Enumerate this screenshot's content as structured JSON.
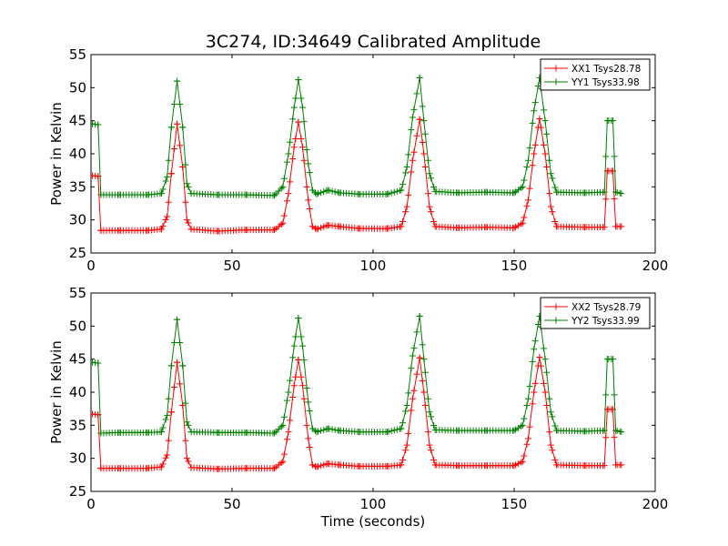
{
  "figure": {
    "title": "3C274, ID:34649 Calibrated Amplitude"
  },
  "chart_data": [
    {
      "type": "line",
      "ylabel": "Power in Kelvin",
      "xlabel": "",
      "xlim": [
        0,
        200
      ],
      "ylim": [
        25,
        55
      ],
      "xticks": [
        "0",
        "50",
        "100",
        "150",
        "200"
      ],
      "yticks": [
        "25",
        "30",
        "35",
        "40",
        "45",
        "50",
        "55"
      ],
      "grid": false,
      "legend_position": "top-right",
      "series": [
        {
          "name": "XX1 Tsys28.78",
          "color": "#ff0000",
          "marker": "plus",
          "values": [
            [
              0.5,
              36.7
            ],
            [
              2.5,
              36.6
            ],
            [
              3.5,
              28.4
            ],
            [
              10,
              28.4
            ],
            [
              20,
              28.4
            ],
            [
              25,
              28.6
            ],
            [
              27,
              30.5
            ],
            [
              28.5,
              37
            ],
            [
              30.5,
              44.5
            ],
            [
              32.5,
              38
            ],
            [
              34,
              30
            ],
            [
              35.5,
              28.6
            ],
            [
              45,
              28.3
            ],
            [
              55,
              28.5
            ],
            [
              65,
              28.5
            ],
            [
              68,
              29.5
            ],
            [
              70,
              34
            ],
            [
              72,
              41
            ],
            [
              73.5,
              44.8
            ],
            [
              75,
              41
            ],
            [
              77,
              33
            ],
            [
              78.5,
              29
            ],
            [
              80,
              28.6
            ],
            [
              84,
              29.2
            ],
            [
              88,
              29
            ],
            [
              95,
              28.7
            ],
            [
              105,
              28.7
            ],
            [
              110,
              29
            ],
            [
              112,
              32
            ],
            [
              114,
              39
            ],
            [
              116.5,
              45.2
            ],
            [
              118,
              40
            ],
            [
              120,
              32
            ],
            [
              122,
              29
            ],
            [
              130,
              28.8
            ],
            [
              140,
              28.9
            ],
            [
              150,
              28.8
            ],
            [
              153,
              29.5
            ],
            [
              155,
              33
            ],
            [
              157,
              40
            ],
            [
              159,
              45.3
            ],
            [
              161,
              40
            ],
            [
              163,
              32
            ],
            [
              165,
              29
            ],
            [
              175,
              28.9
            ],
            [
              182,
              28.9
            ],
            [
              183,
              37.4
            ],
            [
              185,
              37.4
            ],
            [
              186,
              29
            ],
            [
              188,
              29
            ]
          ]
        },
        {
          "name": "YY1 Tsys33.98",
          "color": "#008000",
          "marker": "plus",
          "values": [
            [
              0.5,
              44.5
            ],
            [
              2.5,
              44.4
            ],
            [
              3.5,
              33.8
            ],
            [
              10,
              33.8
            ],
            [
              20,
              33.8
            ],
            [
              25,
              34
            ],
            [
              27,
              36.5
            ],
            [
              28.5,
              44
            ],
            [
              30.5,
              51
            ],
            [
              32.5,
              44
            ],
            [
              34,
              35.5
            ],
            [
              35.5,
              34
            ],
            [
              45,
              33.8
            ],
            [
              55,
              33.8
            ],
            [
              65,
              33.7
            ],
            [
              68,
              35
            ],
            [
              70,
              40
            ],
            [
              72,
              47
            ],
            [
              73.5,
              51.2
            ],
            [
              75,
              47
            ],
            [
              77,
              38.5
            ],
            [
              78.5,
              34.5
            ],
            [
              80,
              33.9
            ],
            [
              84,
              34.5
            ],
            [
              88,
              34.1
            ],
            [
              95,
              33.9
            ],
            [
              105,
              33.9
            ],
            [
              110,
              34.5
            ],
            [
              112,
              38
            ],
            [
              114,
              45.5
            ],
            [
              116.5,
              51.5
            ],
            [
              118,
              45
            ],
            [
              120,
              37
            ],
            [
              122,
              34.3
            ],
            [
              130,
              34.1
            ],
            [
              140,
              34.2
            ],
            [
              150,
              34.1
            ],
            [
              153,
              35
            ],
            [
              155,
              39
            ],
            [
              157,
              46.5
            ],
            [
              159,
              51.5
            ],
            [
              161,
              45
            ],
            [
              163,
              37
            ],
            [
              165,
              34.2
            ],
            [
              175,
              34.1
            ],
            [
              182,
              34.2
            ],
            [
              183,
              45
            ],
            [
              185,
              45
            ],
            [
              186,
              34.2
            ],
            [
              188,
              34
            ]
          ]
        }
      ]
    },
    {
      "type": "line",
      "ylabel": "Power in Kelvin",
      "xlabel": "Time (seconds)",
      "xlim": [
        0,
        200
      ],
      "ylim": [
        25,
        55
      ],
      "xticks": [
        "0",
        "50",
        "100",
        "150",
        "200"
      ],
      "yticks": [
        "25",
        "30",
        "35",
        "40",
        "45",
        "50",
        "55"
      ],
      "grid": false,
      "legend_position": "top-right",
      "series": [
        {
          "name": "XX2 Tsys28.79",
          "color": "#ff0000",
          "marker": "plus",
          "values": [
            [
              0.5,
              36.7
            ],
            [
              2.5,
              36.6
            ],
            [
              3.5,
              28.5
            ],
            [
              10,
              28.5
            ],
            [
              20,
              28.5
            ],
            [
              25,
              28.7
            ],
            [
              27,
              30.5
            ],
            [
              28.5,
              37
            ],
            [
              30.5,
              44.5
            ],
            [
              32.5,
              38
            ],
            [
              34,
              30
            ],
            [
              35.5,
              28.6
            ],
            [
              45,
              28.4
            ],
            [
              55,
              28.5
            ],
            [
              65,
              28.5
            ],
            [
              68,
              29.5
            ],
            [
              70,
              34
            ],
            [
              72,
              41
            ],
            [
              73.5,
              44.9
            ],
            [
              75,
              41
            ],
            [
              77,
              33
            ],
            [
              78.5,
              29
            ],
            [
              80,
              28.7
            ],
            [
              84,
              29.2
            ],
            [
              88,
              29
            ],
            [
              95,
              28.8
            ],
            [
              105,
              28.8
            ],
            [
              110,
              29
            ],
            [
              112,
              32
            ],
            [
              114,
              39
            ],
            [
              116.5,
              45.2
            ],
            [
              118,
              40
            ],
            [
              120,
              32
            ],
            [
              122,
              29
            ],
            [
              130,
              28.9
            ],
            [
              140,
              28.9
            ],
            [
              150,
              28.9
            ],
            [
              153,
              29.5
            ],
            [
              155,
              33
            ],
            [
              157,
              40
            ],
            [
              159,
              45.3
            ],
            [
              161,
              40
            ],
            [
              163,
              32
            ],
            [
              165,
              29
            ],
            [
              175,
              28.9
            ],
            [
              182,
              28.9
            ],
            [
              183,
              37.4
            ],
            [
              185,
              37.4
            ],
            [
              186,
              29
            ],
            [
              188,
              29
            ]
          ]
        },
        {
          "name": "YY2 Tsys33.99",
          "color": "#008000",
          "marker": "plus",
          "values": [
            [
              0.5,
              44.5
            ],
            [
              2.5,
              44.4
            ],
            [
              3.5,
              33.8
            ],
            [
              10,
              33.9
            ],
            [
              20,
              33.9
            ],
            [
              25,
              34
            ],
            [
              27,
              36.5
            ],
            [
              28.5,
              44
            ],
            [
              30.5,
              51
            ],
            [
              32.5,
              44
            ],
            [
              34,
              35.5
            ],
            [
              35.5,
              34
            ],
            [
              45,
              33.9
            ],
            [
              55,
              33.9
            ],
            [
              65,
              33.8
            ],
            [
              68,
              35
            ],
            [
              70,
              40
            ],
            [
              72,
              47
            ],
            [
              73.5,
              51.2
            ],
            [
              75,
              47
            ],
            [
              77,
              38.5
            ],
            [
              78.5,
              34.5
            ],
            [
              80,
              34
            ],
            [
              84,
              34.5
            ],
            [
              88,
              34.2
            ],
            [
              95,
              34
            ],
            [
              105,
              34
            ],
            [
              110,
              34.5
            ],
            [
              112,
              38
            ],
            [
              114,
              45.5
            ],
            [
              116.5,
              51.5
            ],
            [
              118,
              45
            ],
            [
              120,
              37
            ],
            [
              122,
              34.3
            ],
            [
              130,
              34.2
            ],
            [
              140,
              34.2
            ],
            [
              150,
              34.2
            ],
            [
              153,
              35
            ],
            [
              155,
              39
            ],
            [
              157,
              46.5
            ],
            [
              159,
              51.5
            ],
            [
              161,
              45
            ],
            [
              163,
              37
            ],
            [
              165,
              34.2
            ],
            [
              175,
              34.1
            ],
            [
              182,
              34.2
            ],
            [
              183,
              45
            ],
            [
              185,
              45
            ],
            [
              186,
              34.2
            ],
            [
              188,
              34
            ]
          ]
        }
      ]
    }
  ]
}
